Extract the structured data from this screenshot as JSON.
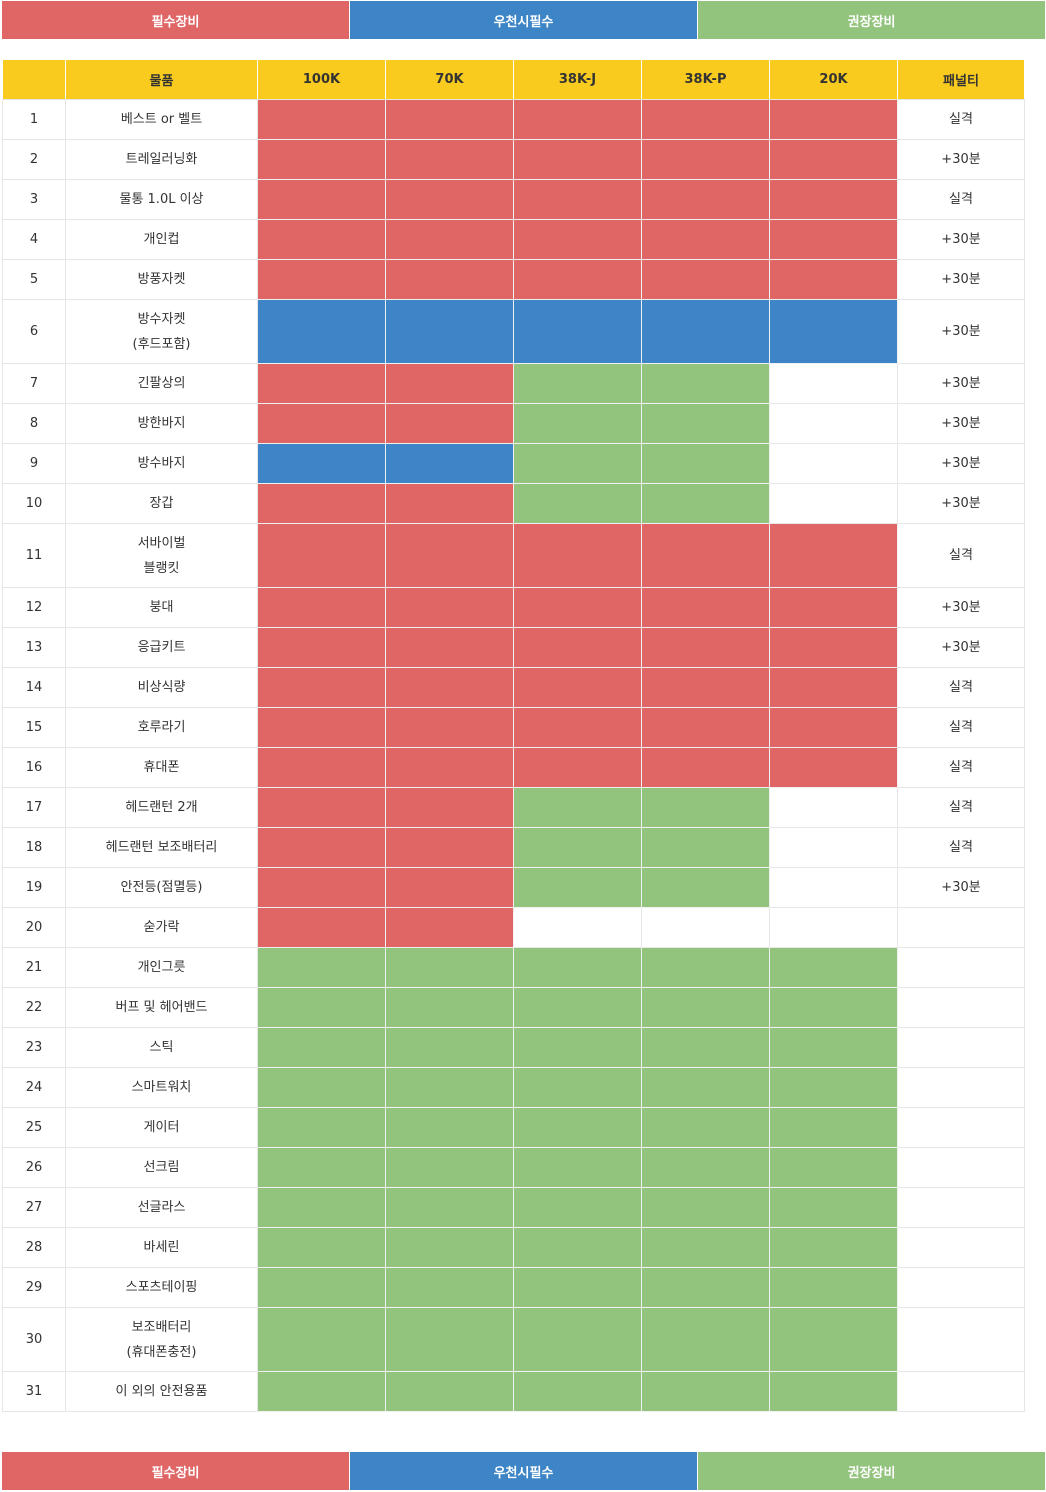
{
  "legend": {
    "required": "필수장비",
    "rain": "우천시필수",
    "recommended": "권장장비"
  },
  "colors": {
    "required": "#e06666",
    "rain": "#3d85c6",
    "recommended": "#93c47d",
    "header": "#f9cb1f"
  },
  "table": {
    "headers": [
      "",
      "물품",
      "100K",
      "70K",
      "38K-J",
      "38K-P",
      "20K",
      "패널티"
    ],
    "rows": [
      {
        "no": "1",
        "item": "베스트 or 벨트",
        "cells": [
          "req",
          "req",
          "req",
          "req",
          "req"
        ],
        "penalty": "실격"
      },
      {
        "no": "2",
        "item": "트레일러닝화",
        "cells": [
          "req",
          "req",
          "req",
          "req",
          "req"
        ],
        "penalty": "+30분"
      },
      {
        "no": "3",
        "item": "물통 1.0L 이상",
        "cells": [
          "req",
          "req",
          "req",
          "req",
          "req"
        ],
        "penalty": "실격"
      },
      {
        "no": "4",
        "item": "개인컵",
        "cells": [
          "req",
          "req",
          "req",
          "req",
          "req"
        ],
        "penalty": "+30분"
      },
      {
        "no": "5",
        "item": "방풍자켓",
        "cells": [
          "req",
          "req",
          "req",
          "req",
          "req"
        ],
        "penalty": "+30분"
      },
      {
        "no": "6",
        "item": "방수자켓\n(후드포함)",
        "cells": [
          "rain",
          "rain",
          "rain",
          "rain",
          "rain"
        ],
        "penalty": "+30분"
      },
      {
        "no": "7",
        "item": "긴팔상의",
        "cells": [
          "req",
          "req",
          "rec",
          "rec",
          "none"
        ],
        "penalty": "+30분"
      },
      {
        "no": "8",
        "item": "방한바지",
        "cells": [
          "req",
          "req",
          "rec",
          "rec",
          "none"
        ],
        "penalty": "+30분"
      },
      {
        "no": "9",
        "item": "방수바지",
        "cells": [
          "rain",
          "rain",
          "rec",
          "rec",
          "none"
        ],
        "penalty": "+30분"
      },
      {
        "no": "10",
        "item": "장갑",
        "cells": [
          "req",
          "req",
          "rec",
          "rec",
          "none"
        ],
        "penalty": "+30분"
      },
      {
        "no": "11",
        "item": "서바이벌\n블랭킷",
        "cells": [
          "req",
          "req",
          "req",
          "req",
          "req"
        ],
        "penalty": "실격"
      },
      {
        "no": "12",
        "item": "붕대",
        "cells": [
          "req",
          "req",
          "req",
          "req",
          "req"
        ],
        "penalty": "+30분"
      },
      {
        "no": "13",
        "item": "응급키트",
        "cells": [
          "req",
          "req",
          "req",
          "req",
          "req"
        ],
        "penalty": "+30분"
      },
      {
        "no": "14",
        "item": "비상식량",
        "cells": [
          "req",
          "req",
          "req",
          "req",
          "req"
        ],
        "penalty": "실격"
      },
      {
        "no": "15",
        "item": "호루라기",
        "cells": [
          "req",
          "req",
          "req",
          "req",
          "req"
        ],
        "penalty": "실격"
      },
      {
        "no": "16",
        "item": "휴대폰",
        "cells": [
          "req",
          "req",
          "req",
          "req",
          "req"
        ],
        "penalty": "실격"
      },
      {
        "no": "17",
        "item": "헤드랜턴 2개",
        "cells": [
          "req",
          "req",
          "rec",
          "rec",
          "none"
        ],
        "penalty": "실격"
      },
      {
        "no": "18",
        "item": "헤드랜턴 보조배터리",
        "cells": [
          "req",
          "req",
          "rec",
          "rec",
          "none"
        ],
        "penalty": "실격"
      },
      {
        "no": "19",
        "item": "안전등(점멸등)",
        "cells": [
          "req",
          "req",
          "rec",
          "rec",
          "none"
        ],
        "penalty": "+30분"
      },
      {
        "no": "20",
        "item": "숟가락",
        "cells": [
          "req",
          "req",
          "none",
          "none",
          "none"
        ],
        "penalty": ""
      },
      {
        "no": "21",
        "item": "개인그릇",
        "cells": [
          "rec",
          "rec",
          "rec",
          "rec",
          "rec"
        ],
        "penalty": ""
      },
      {
        "no": "22",
        "item": "버프 및 헤어밴드",
        "cells": [
          "rec",
          "rec",
          "rec",
          "rec",
          "rec"
        ],
        "penalty": ""
      },
      {
        "no": "23",
        "item": "스틱",
        "cells": [
          "rec",
          "rec",
          "rec",
          "rec",
          "rec"
        ],
        "penalty": ""
      },
      {
        "no": "24",
        "item": "스마트워치",
        "cells": [
          "rec",
          "rec",
          "rec",
          "rec",
          "rec"
        ],
        "penalty": ""
      },
      {
        "no": "25",
        "item": "게이터",
        "cells": [
          "rec",
          "rec",
          "rec",
          "rec",
          "rec"
        ],
        "penalty": ""
      },
      {
        "no": "26",
        "item": "선크림",
        "cells": [
          "rec",
          "rec",
          "rec",
          "rec",
          "rec"
        ],
        "penalty": ""
      },
      {
        "no": "27",
        "item": "선글라스",
        "cells": [
          "rec",
          "rec",
          "rec",
          "rec",
          "rec"
        ],
        "penalty": ""
      },
      {
        "no": "28",
        "item": "바세린",
        "cells": [
          "rec",
          "rec",
          "rec",
          "rec",
          "rec"
        ],
        "penalty": ""
      },
      {
        "no": "29",
        "item": "스포츠테이핑",
        "cells": [
          "rec",
          "rec",
          "rec",
          "rec",
          "rec"
        ],
        "penalty": ""
      },
      {
        "no": "30",
        "item": "보조배터리\n(휴대폰충전)",
        "cells": [
          "rec",
          "rec",
          "rec",
          "rec",
          "rec"
        ],
        "penalty": ""
      },
      {
        "no": "31",
        "item": "이 외의 안전용품",
        "cells": [
          "rec",
          "rec",
          "rec",
          "rec",
          "rec"
        ],
        "penalty": ""
      }
    ]
  }
}
